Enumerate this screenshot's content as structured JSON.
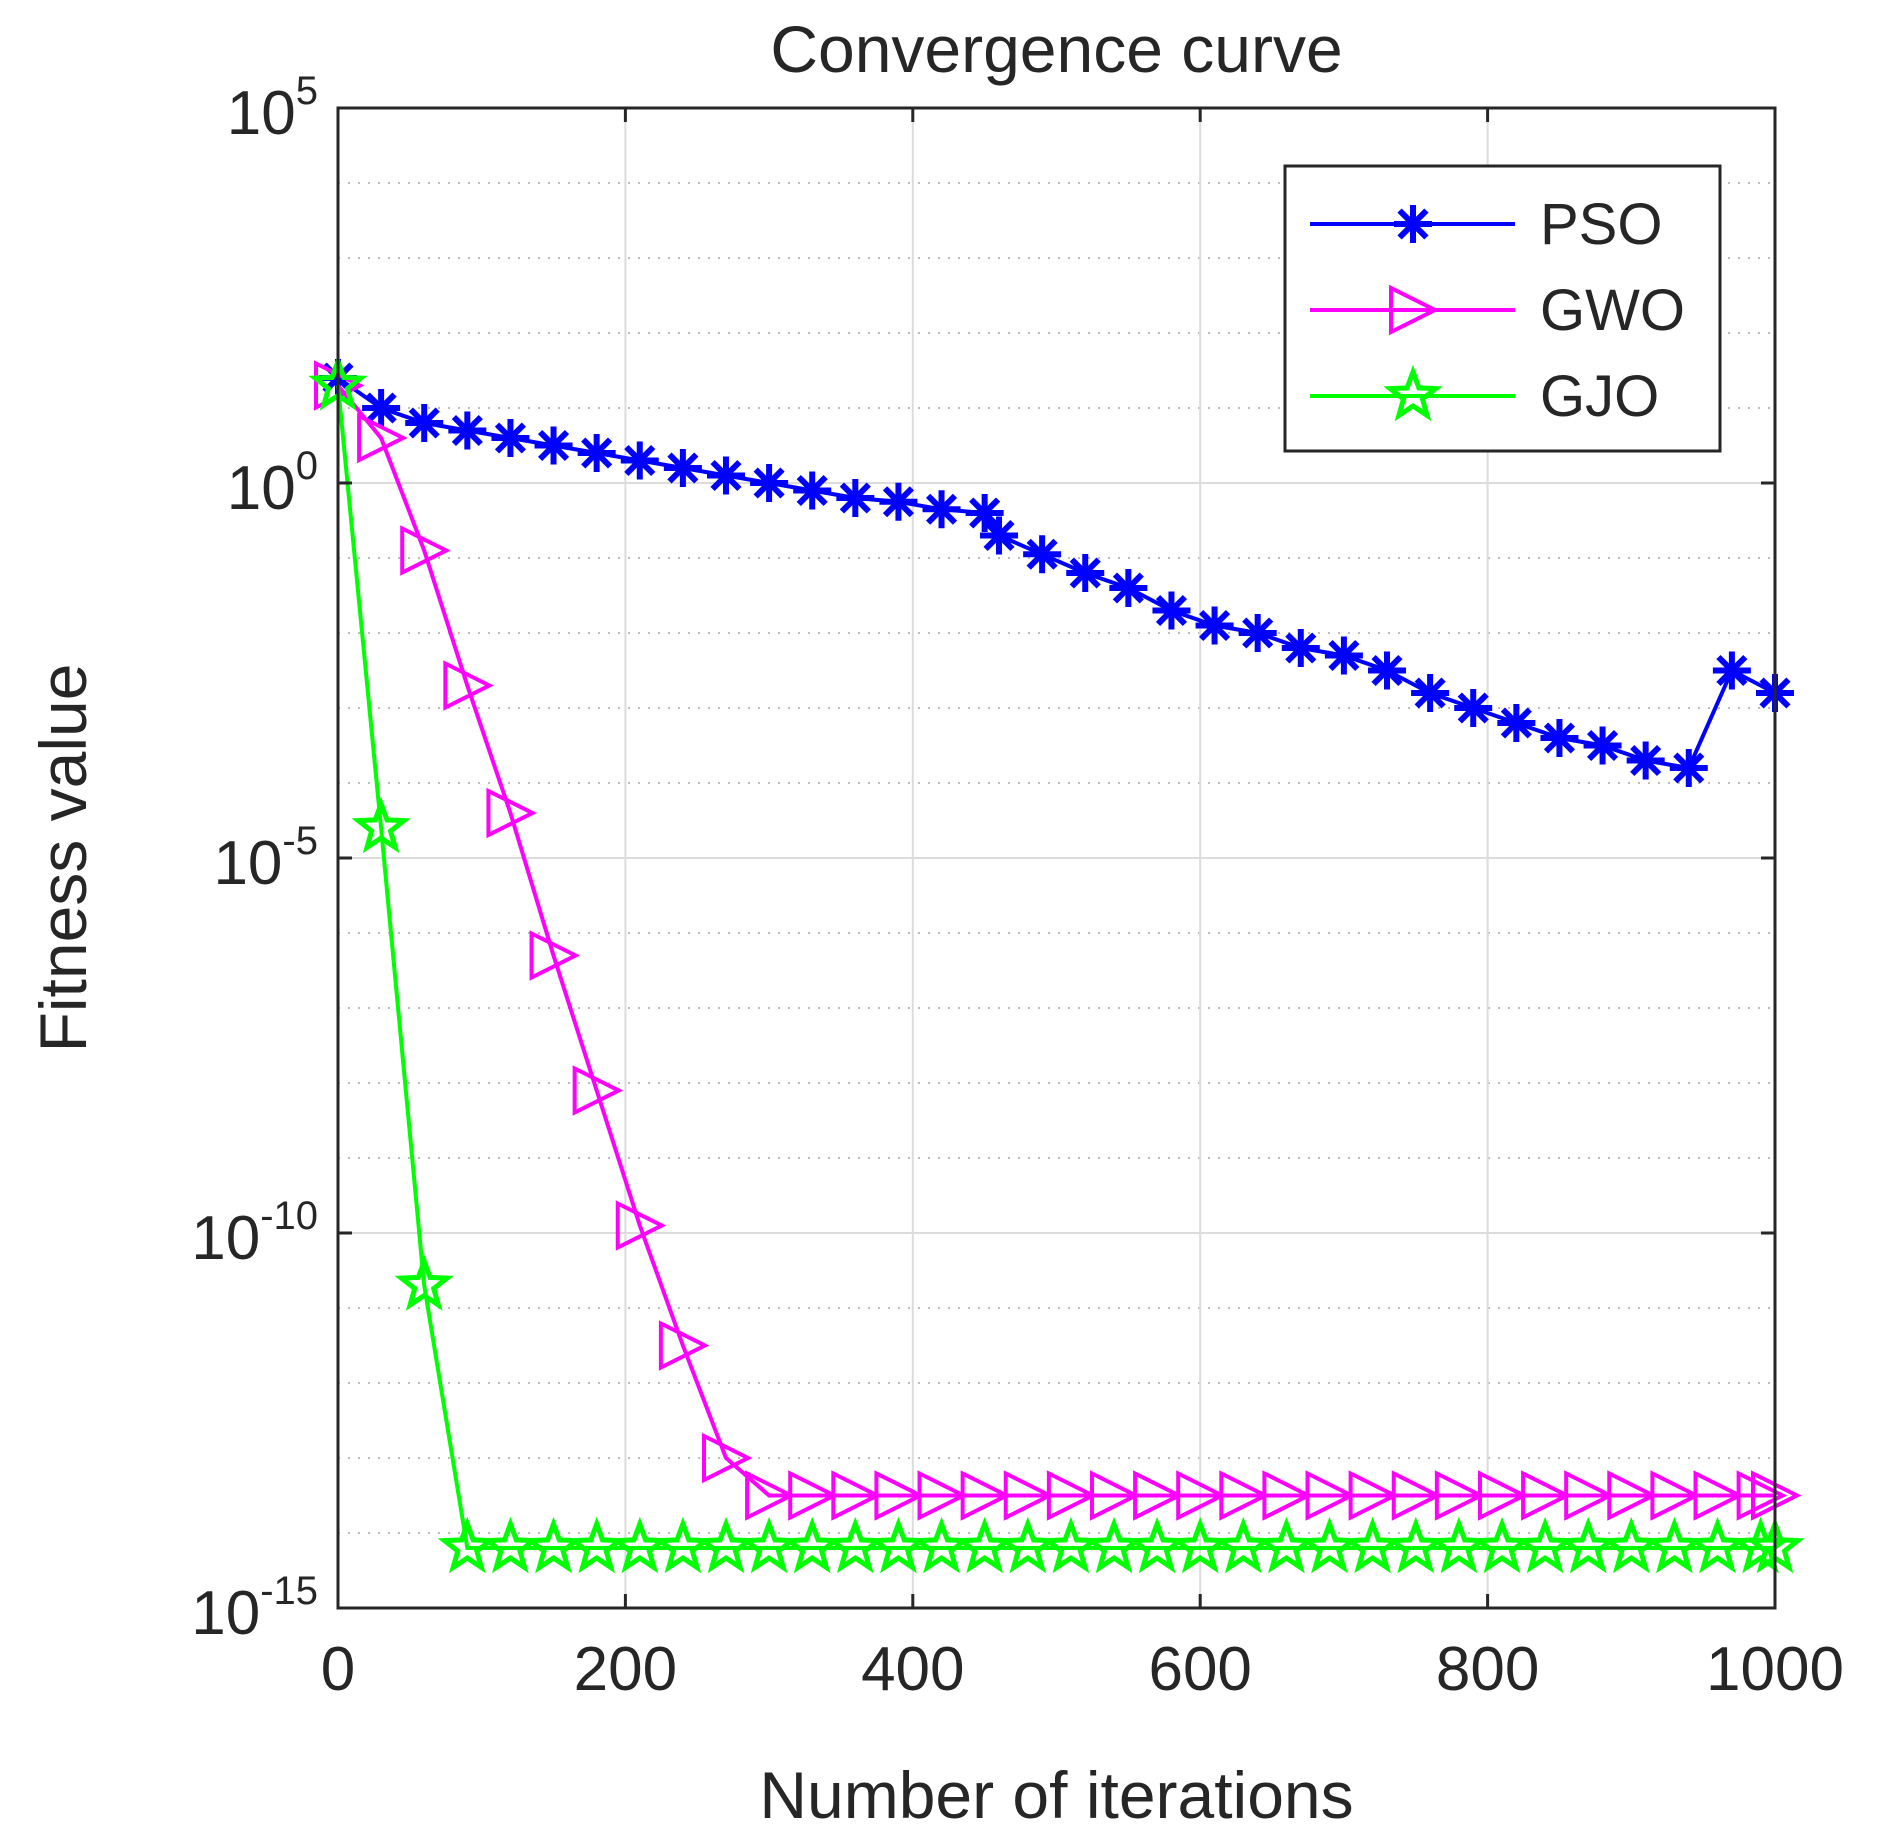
{
  "chart_data": {
    "type": "line",
    "title": "Convergence curve",
    "xlabel": "Number of iterations",
    "ylabel": "Fitness value",
    "xlim": [
      0,
      1000
    ],
    "ylim_log10": [
      -15,
      5
    ],
    "yscale": "log",
    "grid": true,
    "legend_position": "top-right",
    "x_ticks": [
      {
        "value": 0,
        "label": "0"
      },
      {
        "value": 200,
        "label": "200"
      },
      {
        "value": 400,
        "label": "400"
      },
      {
        "value": 600,
        "label": "600"
      },
      {
        "value": 800,
        "label": "800"
      },
      {
        "value": 1000,
        "label": "1000"
      }
    ],
    "y_ticks": [
      {
        "exp": 5,
        "base": "10",
        "power": "5"
      },
      {
        "exp": 0,
        "base": "10",
        "power": "0"
      },
      {
        "exp": -5,
        "base": "10",
        "power": "-5"
      },
      {
        "exp": -10,
        "base": "10",
        "power": "-10"
      },
      {
        "exp": -15,
        "base": "10",
        "power": "-15"
      }
    ],
    "series": [
      {
        "name": "PSO",
        "color": "#0000ff",
        "marker": "asterisk",
        "x": [
          0,
          30,
          60,
          90,
          120,
          150,
          180,
          210,
          240,
          270,
          300,
          330,
          360,
          390,
          420,
          450,
          460,
          490,
          520,
          550,
          580,
          610,
          640,
          670,
          700,
          730,
          760,
          790,
          820,
          850,
          880,
          910,
          940,
          970,
          1000
        ],
        "log10_y": [
          1.4,
          1.0,
          0.8,
          0.7,
          0.6,
          0.5,
          0.4,
          0.3,
          0.2,
          0.1,
          0.0,
          -0.1,
          -0.2,
          -0.25,
          -0.35,
          -0.4,
          -0.7,
          -0.95,
          -1.2,
          -1.4,
          -1.7,
          -1.9,
          -2.0,
          -2.2,
          -2.3,
          -2.5,
          -2.8,
          -3.0,
          -3.2,
          -3.4,
          -3.5,
          -3.7,
          -3.8,
          -2.5,
          -2.8
        ]
      },
      {
        "name": "GWO",
        "color": "#ff00ff",
        "marker": "triangle-right",
        "x": [
          0,
          30,
          60,
          90,
          120,
          150,
          180,
          210,
          240,
          270,
          300,
          330,
          360,
          390,
          420,
          450,
          480,
          510,
          540,
          570,
          600,
          630,
          660,
          690,
          720,
          750,
          780,
          810,
          840,
          870,
          900,
          930,
          960,
          990,
          1000
        ],
        "log10_y": [
          1.3,
          0.6,
          -0.9,
          -2.7,
          -4.4,
          -6.3,
          -8.1,
          -9.9,
          -11.5,
          -13.0,
          -13.5,
          -13.5,
          -13.5,
          -13.5,
          -13.5,
          -13.5,
          -13.5,
          -13.5,
          -13.5,
          -13.5,
          -13.5,
          -13.5,
          -13.5,
          -13.5,
          -13.5,
          -13.5,
          -13.5,
          -13.5,
          -13.5,
          -13.5,
          -13.5,
          -13.5,
          -13.5,
          -13.5,
          -13.5
        ]
      },
      {
        "name": "GJO",
        "color": "#00ff00",
        "marker": "pentagram",
        "x": [
          0,
          30,
          60,
          90,
          120,
          150,
          180,
          210,
          240,
          270,
          300,
          330,
          360,
          390,
          420,
          450,
          480,
          510,
          540,
          570,
          600,
          630,
          660,
          690,
          720,
          750,
          780,
          810,
          840,
          870,
          900,
          930,
          960,
          990,
          1000
        ],
        "log10_y": [
          1.3,
          -4.6,
          -10.7,
          -14.2,
          -14.2,
          -14.2,
          -14.2,
          -14.2,
          -14.2,
          -14.2,
          -14.2,
          -14.2,
          -14.2,
          -14.2,
          -14.2,
          -14.2,
          -14.2,
          -14.2,
          -14.2,
          -14.2,
          -14.2,
          -14.2,
          -14.2,
          -14.2,
          -14.2,
          -14.2,
          -14.2,
          -14.2,
          -14.2,
          -14.2,
          -14.2,
          -14.2,
          -14.2,
          -14.2,
          -14.2
        ]
      }
    ]
  }
}
